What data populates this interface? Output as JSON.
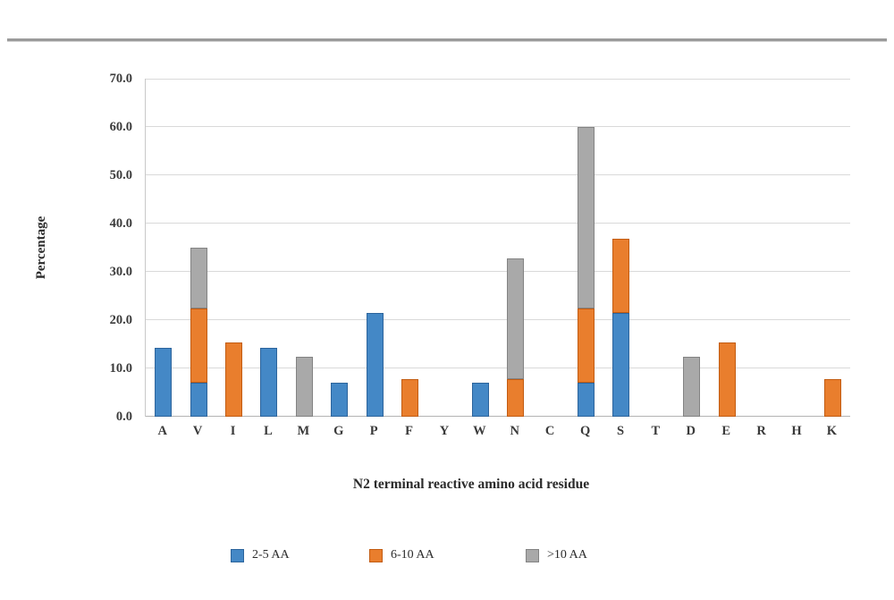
{
  "page": {
    "separator_color": "#9b9b9b",
    "background": "#ffffff"
  },
  "chart_data": {
    "type": "bar",
    "stacked": true,
    "title": "",
    "xlabel": "N2 terminal reactive amino acid residue",
    "ylabel": "Percentage",
    "ylim": [
      0,
      70
    ],
    "ytick_step": 10,
    "ytick_labels": [
      "0.0",
      "10.0",
      "20.0",
      "30.0",
      "40.0",
      "50.0",
      "60.0",
      "70.0"
    ],
    "grid": true,
    "legend_position": "bottom",
    "categories": [
      "A",
      "V",
      "I",
      "L",
      "M",
      "G",
      "P",
      "F",
      "Y",
      "W",
      "N",
      "C",
      "Q",
      "S",
      "T",
      "D",
      "E",
      "R",
      "H",
      "K"
    ],
    "series": [
      {
        "name": "2-5 AA",
        "color": "#4488c6",
        "border_color": "#2c649c",
        "values": [
          14.3,
          7.1,
          0,
          14.3,
          0,
          7.1,
          21.4,
          0,
          0,
          7.1,
          0,
          0,
          7.1,
          21.4,
          0,
          0,
          0,
          0,
          0,
          0
        ]
      },
      {
        "name": "6-10 AA",
        "color": "#e97e2d",
        "border_color": "#c25c12",
        "values": [
          0,
          15.4,
          15.4,
          0,
          0,
          0,
          0,
          7.7,
          0,
          0,
          7.7,
          0,
          15.4,
          15.4,
          0,
          0,
          15.4,
          0,
          0,
          7.7
        ]
      },
      {
        "name": ">10 AA",
        "color": "#a9a9a9",
        "border_color": "#838383",
        "values": [
          0,
          12.5,
          0,
          0,
          12.5,
          0,
          0,
          0,
          0,
          0,
          25.0,
          0,
          37.5,
          0,
          0,
          12.5,
          0,
          0,
          0,
          0
        ]
      }
    ]
  }
}
